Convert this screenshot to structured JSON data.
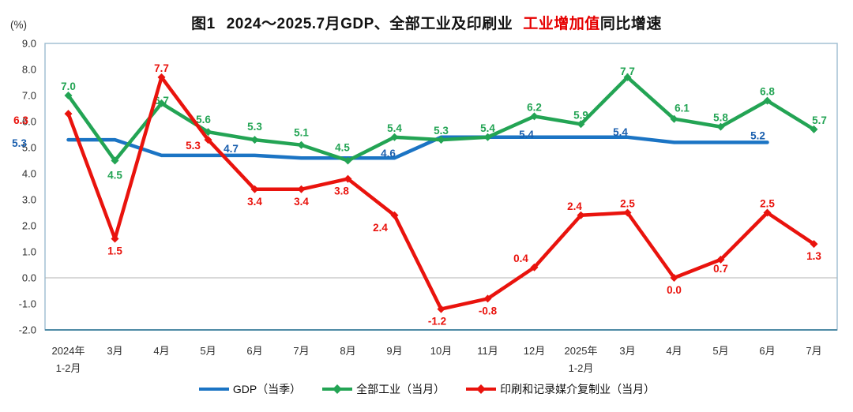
{
  "title": {
    "figure_label": "图1",
    "main": "2024～2025.7月GDP、全部工业及印刷业",
    "highlight": "工业增加值",
    "suffix": "同比增速"
  },
  "colors": {
    "title_text": "#111111",
    "title_highlight": "#e60000",
    "axis_text": "#2e2e2e",
    "plot_border": "#9cbccf",
    "plot_border_bottom": "#4e8ba6",
    "zero_line": "#b3b3b3",
    "background": "#ffffff",
    "gdp_blue": "#1b74c4",
    "gdp_label_blue": "#1a5fae",
    "industry_green": "#23a454",
    "printing_red": "#e9130d"
  },
  "chart_data": {
    "type": "line",
    "title": "图1 2024～2025.7月GDP、全部工业及印刷业 工业增加值同比增速",
    "title_highlight_part": "工业增加值",
    "y_unit": "(%)",
    "ylim": [
      -2.0,
      9.0
    ],
    "ytick_step": 1.0,
    "grid": "zero-line-only",
    "legend_position": "bottom-center",
    "categories": [
      [
        "2024年",
        "1-2月"
      ],
      [
        "3月"
      ],
      [
        "4月"
      ],
      [
        "5月"
      ],
      [
        "6月"
      ],
      [
        "7月"
      ],
      [
        "8月"
      ],
      [
        "9月"
      ],
      [
        "10月"
      ],
      [
        "11月"
      ],
      [
        "12月"
      ],
      [
        "2025年",
        "1-2月"
      ],
      [
        "3月"
      ],
      [
        "4月"
      ],
      [
        "5月"
      ],
      [
        "6月"
      ],
      [
        "7月"
      ]
    ],
    "series": [
      {
        "id": "gdp",
        "name": "GDP（当季）",
        "color": "#1b74c4",
        "label_color": "#1a5fae",
        "marker": false,
        "quarterly_values": [
          5.3,
          4.7,
          4.6,
          5.4,
          5.4,
          5.2
        ],
        "values": [
          5.3,
          5.3,
          4.7,
          4.7,
          4.7,
          4.6,
          4.6,
          4.6,
          5.4,
          5.4,
          5.4,
          5.4,
          5.4,
          5.2,
          5.2,
          5.2,
          null
        ],
        "point_labels": [
          {
            "index": 0,
            "text": "5.3",
            "pos": "left",
            "dx": -38,
            "dy": 0
          },
          {
            "index": 4,
            "text": "4.7",
            "pos": "above",
            "dx": -30,
            "dy": 3
          },
          {
            "index": 7,
            "text": "4.6",
            "pos": "above",
            "dx": -8,
            "dy": 6
          },
          {
            "index": 10,
            "text": "5.4",
            "pos": "above",
            "dx": -10,
            "dy": 8
          },
          {
            "index": 12,
            "text": "5.4",
            "pos": "above",
            "dx": -9,
            "dy": 5
          },
          {
            "index": 15,
            "text": "5.2",
            "pos": "above",
            "dx": -12,
            "dy": 3
          }
        ]
      },
      {
        "id": "all-industry",
        "name": "全部工业（当月）",
        "color": "#23a454",
        "label_color": "#23a454",
        "marker": true,
        "values": [
          7.0,
          4.5,
          6.7,
          5.6,
          5.3,
          5.1,
          4.5,
          5.4,
          5.3,
          5.4,
          6.2,
          5.9,
          7.7,
          6.1,
          5.8,
          6.8,
          5.7
        ],
        "label_pos": [
          "above",
          "below",
          "above",
          "above",
          "above",
          "above",
          "above",
          "above",
          "above",
          "above",
          "above",
          "above",
          "above",
          "above",
          "above",
          "above",
          "above"
        ],
        "label_overrides": {
          "1": {
            "dy": 3
          },
          "2": {
            "dy": 8
          },
          "3": {
            "dx": -6,
            "dy": -4
          },
          "4": {
            "dy": -5
          },
          "5": {
            "dy": -4
          },
          "6": {
            "dx": -7,
            "dy": -5
          },
          "12": {
            "dy": 4
          },
          "13": {
            "dx": 10,
            "dy": -2
          },
          "16": {
            "dx": 7
          }
        }
      },
      {
        "id": "printing",
        "name": "印刷和记录媒介复制业（当月）",
        "color": "#e9130d",
        "label_color": "#e9130d",
        "marker": true,
        "values": [
          6.3,
          1.5,
          7.7,
          5.3,
          3.4,
          3.4,
          3.8,
          2.4,
          -1.2,
          -0.8,
          0.4,
          2.4,
          2.5,
          0.0,
          0.7,
          2.5,
          1.3
        ],
        "label_pos": [
          "left",
          "below",
          "above",
          "below",
          "below",
          "below",
          "below",
          "below",
          "below",
          "below",
          "above",
          "above",
          "above",
          "below",
          "below",
          "above",
          "below"
        ],
        "label_overrides": {
          "0": {
            "dx": -36,
            "dy": 4
          },
          "3": {
            "dx": -19,
            "dy": -8
          },
          "6": {
            "dx": -8
          },
          "7": {
            "dx": -18
          },
          "8": {
            "dx": -5
          },
          "10": {
            "dx": -17
          },
          "11": {
            "dx": -8
          },
          "14": {
            "dy": -4
          }
        }
      }
    ]
  }
}
